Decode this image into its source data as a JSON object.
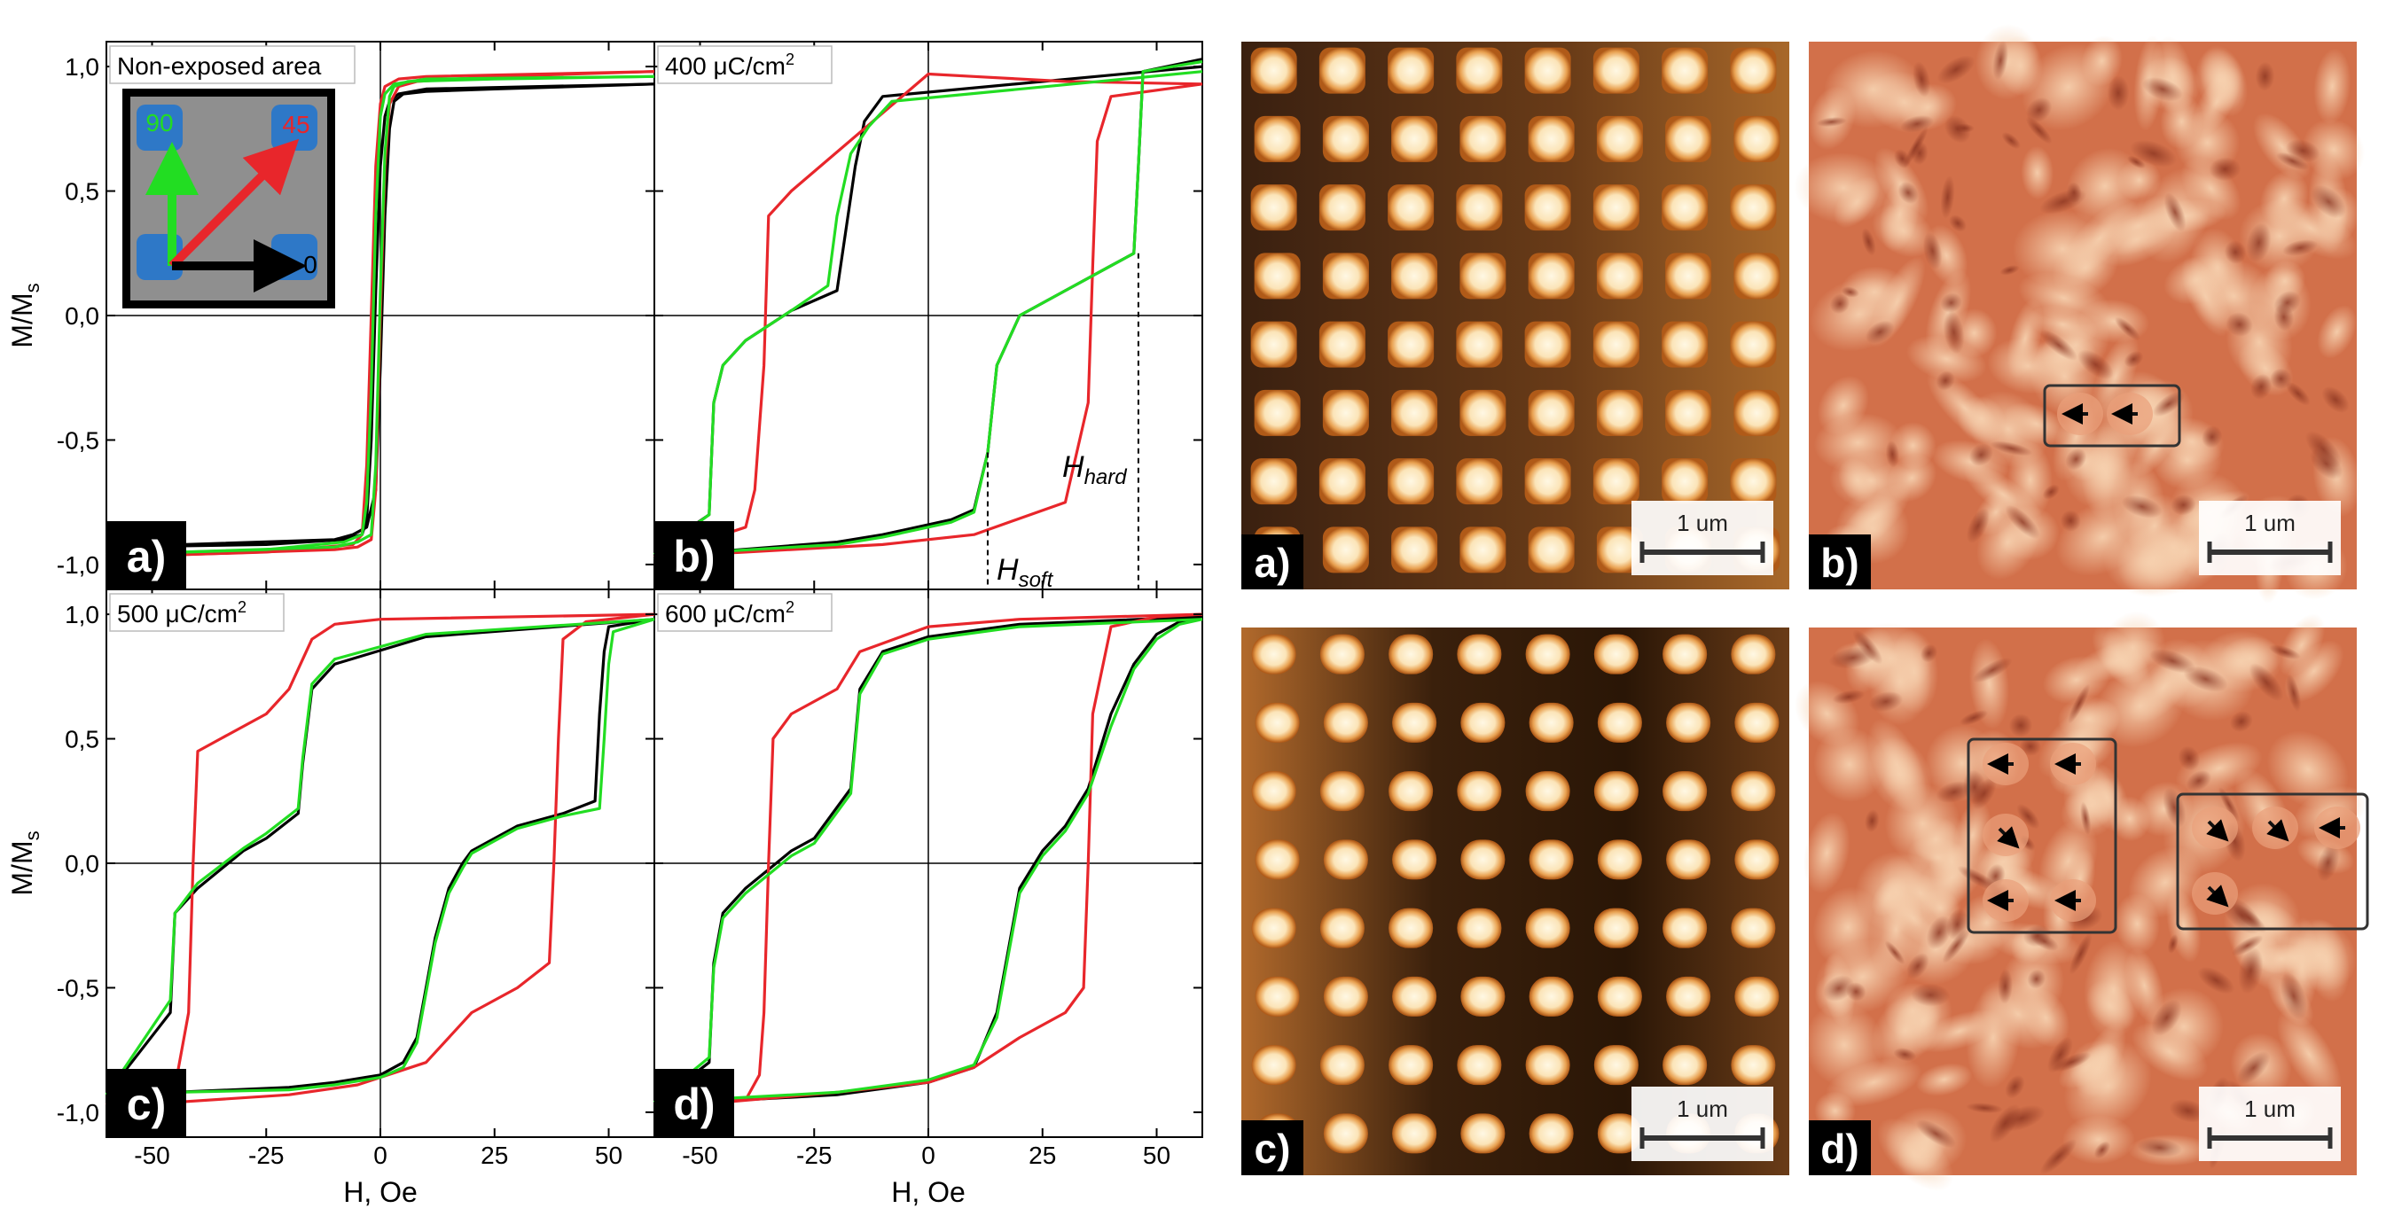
{
  "colors": {
    "angle_0": "#000000",
    "angle_45": "#e8262b",
    "angle_90": "#22dd22",
    "pad_blue": "#2e78c7",
    "inset_bg": "#8f8f8f",
    "particle_bright": "#fff0d0",
    "particle_edge": "#d07a28",
    "afm_bg_dark": "#2a1606",
    "afm_bg_light": "#a0622a",
    "mfm_base": "#d2704a",
    "mfm_light": "#f0c4a0",
    "mfm_dark": "#6a2818"
  },
  "hysteresis": {
    "ylabel": "M/M",
    "ylabel_sub": "s",
    "xlabel": "H, Oe",
    "x_ticks": [
      "-50",
      "-25",
      "0",
      "25",
      "50"
    ],
    "y_ticks": [
      "1,0",
      "0,5",
      "0,0",
      "-0,5",
      "-1,0"
    ],
    "inset": {
      "label_90": "90",
      "label_45": "45",
      "label_0": "0"
    },
    "annotations": {
      "h_hard": "H",
      "h_hard_sub": "hard",
      "h_soft": "H",
      "h_soft_sub": "soft"
    },
    "panels": [
      {
        "label": "a)",
        "title": "Non-exposed area"
      },
      {
        "label": "b)",
        "title": "400 μC/cm",
        "title_sup": "2"
      },
      {
        "label": "c)",
        "title": "500 μC/cm",
        "title_sup": "2"
      },
      {
        "label": "d)",
        "title": "600 μC/cm",
        "title_sup": "2"
      }
    ]
  },
  "images": {
    "scale_text": "1 um",
    "panels": [
      {
        "label": "a)",
        "type": "afm"
      },
      {
        "label": "b)",
        "type": "mfm"
      },
      {
        "label": "c)",
        "type": "afm"
      },
      {
        "label": "d)",
        "type": "mfm"
      }
    ]
  },
  "chart_data": [
    {
      "type": "line",
      "panel": "a)",
      "title": "Non-exposed area",
      "xlabel": "H, Oe",
      "ylabel": "M/Ms",
      "xlim": [
        -60,
        60
      ],
      "ylim": [
        -1.1,
        1.1
      ],
      "grid": false,
      "series": [
        {
          "name": "0",
          "branches": [
            {
              "x": [
                -60,
                -10,
                -6,
                -3,
                -1,
                0,
                1,
                2,
                3,
                5,
                10,
                25,
                60
              ],
              "y": [
                -0.93,
                -0.9,
                -0.88,
                -0.85,
                -0.7,
                -0.2,
                0.4,
                0.75,
                0.86,
                0.89,
                0.9,
                0.91,
                0.93
              ]
            },
            {
              "x": [
                60,
                10,
                4,
                2,
                1,
                0,
                -1,
                -2,
                -3,
                -4,
                -8,
                -25,
                -60
              ],
              "y": [
                0.93,
                0.91,
                0.89,
                0.86,
                0.8,
                0.6,
                0.1,
                -0.5,
                -0.82,
                -0.88,
                -0.9,
                -0.92,
                -0.93
              ]
            }
          ]
        },
        {
          "name": "45",
          "branches": [
            {
              "x": [
                -60,
                -10,
                -5,
                -2,
                -1,
                0,
                1,
                2,
                4,
                8,
                25,
                60
              ],
              "y": [
                -0.97,
                -0.94,
                -0.93,
                -0.9,
                -0.7,
                0.0,
                0.6,
                0.85,
                0.92,
                0.94,
                0.96,
                0.98
              ]
            },
            {
              "x": [
                60,
                10,
                4,
                1,
                0,
                -1,
                -2,
                -3,
                -4,
                -6,
                -25,
                -60
              ],
              "y": [
                0.98,
                0.96,
                0.95,
                0.92,
                0.85,
                0.6,
                0.0,
                -0.6,
                -0.88,
                -0.92,
                -0.95,
                -0.97
              ]
            }
          ]
        },
        {
          "name": "90",
          "branches": [
            {
              "x": [
                -60,
                -10,
                -5,
                -2,
                -1,
                0,
                1,
                2,
                3,
                6,
                25,
                60
              ],
              "y": [
                -0.96,
                -0.93,
                -0.91,
                -0.88,
                -0.6,
                0.1,
                0.65,
                0.88,
                0.92,
                0.94,
                0.95,
                0.96
              ]
            },
            {
              "x": [
                60,
                10,
                3,
                1,
                0,
                -1,
                -2,
                -3,
                -4,
                -8,
                -25,
                -60
              ],
              "y": [
                0.96,
                0.95,
                0.93,
                0.89,
                0.8,
                0.4,
                -0.3,
                -0.75,
                -0.88,
                -0.91,
                -0.94,
                -0.96
              ]
            }
          ]
        }
      ]
    },
    {
      "type": "line",
      "panel": "b)",
      "title": "400 μC/cm2",
      "xlabel": "H, Oe",
      "ylabel": "M/Ms",
      "xlim": [
        -60,
        60
      ],
      "ylim": [
        -1.1,
        1.1
      ],
      "grid": false,
      "annotations": [
        {
          "text": "Hhard",
          "x": 46
        },
        {
          "text": "Hsoft",
          "x": 13
        }
      ],
      "series": [
        {
          "name": "0",
          "branches": [
            {
              "x": [
                -60,
                -48,
                -20,
                -10,
                5,
                10,
                13,
                15,
                20,
                30,
                40,
                45,
                46,
                47,
                60
              ],
              "y": [
                -0.97,
                -0.95,
                -0.91,
                -0.88,
                -0.82,
                -0.78,
                -0.55,
                -0.2,
                0.0,
                0.1,
                0.2,
                0.25,
                0.6,
                0.98,
                1.03
              ]
            },
            {
              "x": [
                60,
                -10,
                -14,
                -16,
                -20,
                -30,
                -40,
                -45,
                -47,
                -48,
                -60
              ],
              "y": [
                1.0,
                0.88,
                0.78,
                0.6,
                0.1,
                0.02,
                -0.1,
                -0.2,
                -0.35,
                -0.8,
                -0.95
              ]
            }
          ]
        },
        {
          "name": "45",
          "branches": [
            {
              "x": [
                -60,
                -40,
                -10,
                10,
                30,
                35,
                36,
                37,
                40,
                60
              ],
              "y": [
                -0.97,
                -0.95,
                -0.92,
                -0.88,
                -0.75,
                -0.35,
                0.2,
                0.7,
                0.88,
                0.93
              ]
            },
            {
              "x": [
                60,
                30,
                20,
                10,
                0,
                -30,
                -35,
                -36,
                -38,
                -40,
                -60
              ],
              "y": [
                0.93,
                0.94,
                0.95,
                0.96,
                0.97,
                0.5,
                0.4,
                -0.2,
                -0.7,
                -0.85,
                -0.97
              ]
            }
          ]
        },
        {
          "name": "90",
          "branches": [
            {
              "x": [
                -60,
                -48,
                -20,
                -10,
                5,
                10,
                13,
                15,
                20,
                30,
                40,
                45,
                46,
                47,
                60
              ],
              "y": [
                -0.98,
                -0.95,
                -0.92,
                -0.89,
                -0.83,
                -0.79,
                -0.55,
                -0.2,
                0.0,
                0.1,
                0.2,
                0.25,
                0.6,
                0.98,
                1.02
              ]
            },
            {
              "x": [
                60,
                -8,
                -13,
                -17,
                -20,
                -22,
                -30,
                -40,
                -45,
                -47,
                -48,
                -60
              ],
              "y": [
                0.98,
                0.86,
                0.76,
                0.65,
                0.4,
                0.12,
                0.02,
                -0.1,
                -0.2,
                -0.35,
                -0.8,
                -0.96
              ]
            }
          ]
        }
      ]
    },
    {
      "type": "line",
      "panel": "c)",
      "title": "500 μC/cm2",
      "xlabel": "H, Oe",
      "ylabel": "M/Ms",
      "xlim": [
        -60,
        60
      ],
      "ylim": [
        -1.1,
        1.1
      ],
      "grid": false,
      "series": [
        {
          "name": "0",
          "branches": [
            {
              "x": [
                -60,
                -45,
                -20,
                -10,
                0,
                5,
                8,
                10,
                12,
                15,
                18,
                20,
                25,
                30,
                40,
                47,
                48,
                49,
                50,
                60
              ],
              "y": [
                -0.93,
                -0.92,
                -0.9,
                -0.88,
                -0.85,
                -0.8,
                -0.7,
                -0.5,
                -0.3,
                -0.1,
                0.0,
                0.05,
                0.1,
                0.15,
                0.2,
                0.25,
                0.6,
                0.85,
                0.95,
                0.98
              ]
            },
            {
              "x": [
                60,
                10,
                -10,
                -15,
                -17,
                -18,
                -25,
                -30,
                -40,
                -45,
                -46,
                -60
              ],
              "y": [
                0.98,
                0.91,
                0.8,
                0.7,
                0.4,
                0.2,
                0.1,
                0.05,
                -0.1,
                -0.2,
                -0.6,
                -0.93
              ]
            }
          ]
        },
        {
          "name": "45",
          "branches": [
            {
              "x": [
                -60,
                -45,
                -20,
                -5,
                10,
                20,
                30,
                37,
                38,
                39,
                40,
                45,
                60
              ],
              "y": [
                -0.97,
                -0.96,
                -0.93,
                -0.89,
                -0.8,
                -0.6,
                -0.5,
                -0.4,
                0.0,
                0.5,
                0.9,
                0.97,
                1.0
              ]
            },
            {
              "x": [
                60,
                0,
                -10,
                -15,
                -20,
                -25,
                -35,
                -40,
                -41,
                -42,
                -45,
                -60
              ],
              "y": [
                1.0,
                0.98,
                0.96,
                0.9,
                0.7,
                0.6,
                0.5,
                0.45,
                0.0,
                -0.6,
                -0.9,
                -0.97
              ]
            }
          ]
        },
        {
          "name": "90",
          "branches": [
            {
              "x": [
                -60,
                -45,
                -20,
                -10,
                0,
                5,
                8,
                10,
                12,
                15,
                18,
                20,
                25,
                30,
                40,
                48,
                49,
                50,
                51,
                60
              ],
              "y": [
                -0.93,
                -0.92,
                -0.91,
                -0.89,
                -0.86,
                -0.82,
                -0.72,
                -0.52,
                -0.32,
                -0.12,
                -0.02,
                0.04,
                0.09,
                0.14,
                0.19,
                0.22,
                0.5,
                0.8,
                0.93,
                0.98
              ]
            },
            {
              "x": [
                60,
                10,
                -10,
                -15,
                -17,
                -18,
                -25,
                -30,
                -40,
                -45,
                -46,
                -60
              ],
              "y": [
                0.98,
                0.92,
                0.82,
                0.72,
                0.42,
                0.22,
                0.12,
                0.06,
                -0.08,
                -0.2,
                -0.55,
                -0.93
              ]
            }
          ]
        }
      ]
    },
    {
      "type": "line",
      "panel": "d)",
      "title": "600 μC/cm2",
      "xlabel": "H, Oe",
      "ylabel": "M/Ms",
      "xlim": [
        -60,
        60
      ],
      "ylim": [
        -1.1,
        1.1
      ],
      "grid": false,
      "series": [
        {
          "name": "0",
          "branches": [
            {
              "x": [
                -60,
                -50,
                -20,
                0,
                10,
                15,
                18,
                20,
                25,
                30,
                35,
                40,
                45,
                50,
                55,
                60
              ],
              "y": [
                -0.97,
                -0.96,
                -0.93,
                -0.88,
                -0.82,
                -0.6,
                -0.3,
                -0.1,
                0.05,
                0.15,
                0.3,
                0.6,
                0.8,
                0.92,
                0.97,
                0.99
              ]
            },
            {
              "x": [
                60,
                20,
                0,
                -10,
                -15,
                -17,
                -25,
                -30,
                -40,
                -45,
                -47,
                -48,
                -60
              ],
              "y": [
                0.99,
                0.96,
                0.91,
                0.85,
                0.7,
                0.3,
                0.1,
                0.05,
                -0.1,
                -0.2,
                -0.4,
                -0.8,
                -0.97
              ]
            }
          ]
        },
        {
          "name": "45",
          "branches": [
            {
              "x": [
                -60,
                -45,
                -20,
                0,
                10,
                20,
                30,
                34,
                35,
                36,
                40,
                50,
                60
              ],
              "y": [
                -0.97,
                -0.96,
                -0.92,
                -0.88,
                -0.82,
                -0.7,
                -0.6,
                -0.5,
                0.0,
                0.6,
                0.95,
                0.99,
                1.0
              ]
            },
            {
              "x": [
                60,
                20,
                0,
                -15,
                -20,
                -30,
                -34,
                -35,
                -36,
                -37,
                -40,
                -60
              ],
              "y": [
                1.0,
                0.98,
                0.95,
                0.85,
                0.7,
                0.6,
                0.5,
                0.0,
                -0.6,
                -0.85,
                -0.95,
                -0.97
              ]
            }
          ]
        },
        {
          "name": "90",
          "branches": [
            {
              "x": [
                -60,
                -50,
                -20,
                0,
                10,
                15,
                18,
                20,
                25,
                30,
                35,
                40,
                45,
                50,
                55,
                60
              ],
              "y": [
                -0.96,
                -0.95,
                -0.92,
                -0.87,
                -0.81,
                -0.62,
                -0.32,
                -0.12,
                0.03,
                0.13,
                0.28,
                0.55,
                0.78,
                0.9,
                0.96,
                0.98
              ]
            },
            {
              "x": [
                60,
                20,
                0,
                -10,
                -15,
                -17,
                -25,
                -30,
                -40,
                -45,
                -47,
                -48,
                -60
              ],
              "y": [
                0.98,
                0.95,
                0.9,
                0.84,
                0.68,
                0.28,
                0.08,
                0.03,
                -0.12,
                -0.22,
                -0.42,
                -0.78,
                -0.96
              ]
            }
          ]
        }
      ]
    }
  ]
}
